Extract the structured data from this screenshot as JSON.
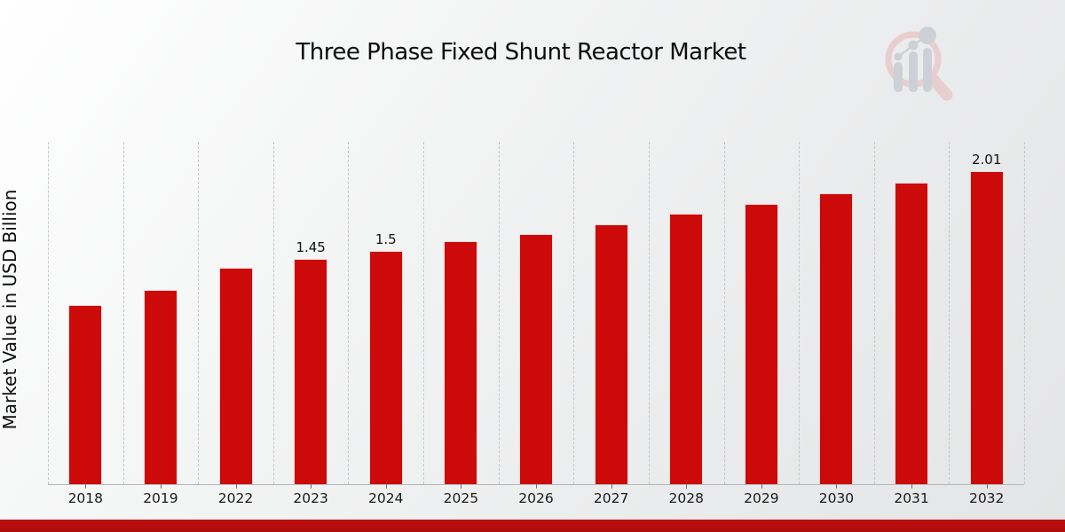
{
  "page": {
    "title": "Three Phase Fixed Shunt Reactor Market",
    "colors": {
      "bar": "#cc0a0a",
      "bottom_band": "#b50e0e",
      "background_start": "#ffffff",
      "background_end": "#e4e5e6",
      "gridline": "#c6c7c8",
      "axis_line": "#b5b6b7",
      "text": "#0d0d0d",
      "logo_ring": "#e8cdcd",
      "logo_bars": "#ccd0d5"
    },
    "logo_icon": "magnifier-growth-bars-logo"
  },
  "chart_data": {
    "type": "bar",
    "title": "Three Phase Fixed Shunt Reactor Market",
    "xlabel": "",
    "ylabel": "Market Value in USD Billion",
    "categories": [
      "2018",
      "2019",
      "2022",
      "2023",
      "2024",
      "2025",
      "2026",
      "2027",
      "2028",
      "2029",
      "2030",
      "2031",
      "2032"
    ],
    "values": [
      1.15,
      1.25,
      1.39,
      1.45,
      1.5,
      1.56,
      1.61,
      1.67,
      1.74,
      1.8,
      1.87,
      1.94,
      2.01
    ],
    "bar_labels": [
      "",
      "",
      "",
      "1.45",
      "1.5",
      "",
      "",
      "",
      "",
      "",
      "",
      "",
      "2.01"
    ],
    "ylim": [
      0,
      2.2
    ],
    "grid": "vertical-dashed-category-boundaries",
    "legend": "none",
    "bar_color": "#cc0a0a",
    "label_fontsize_px": 15,
    "units": "USD Billion"
  }
}
